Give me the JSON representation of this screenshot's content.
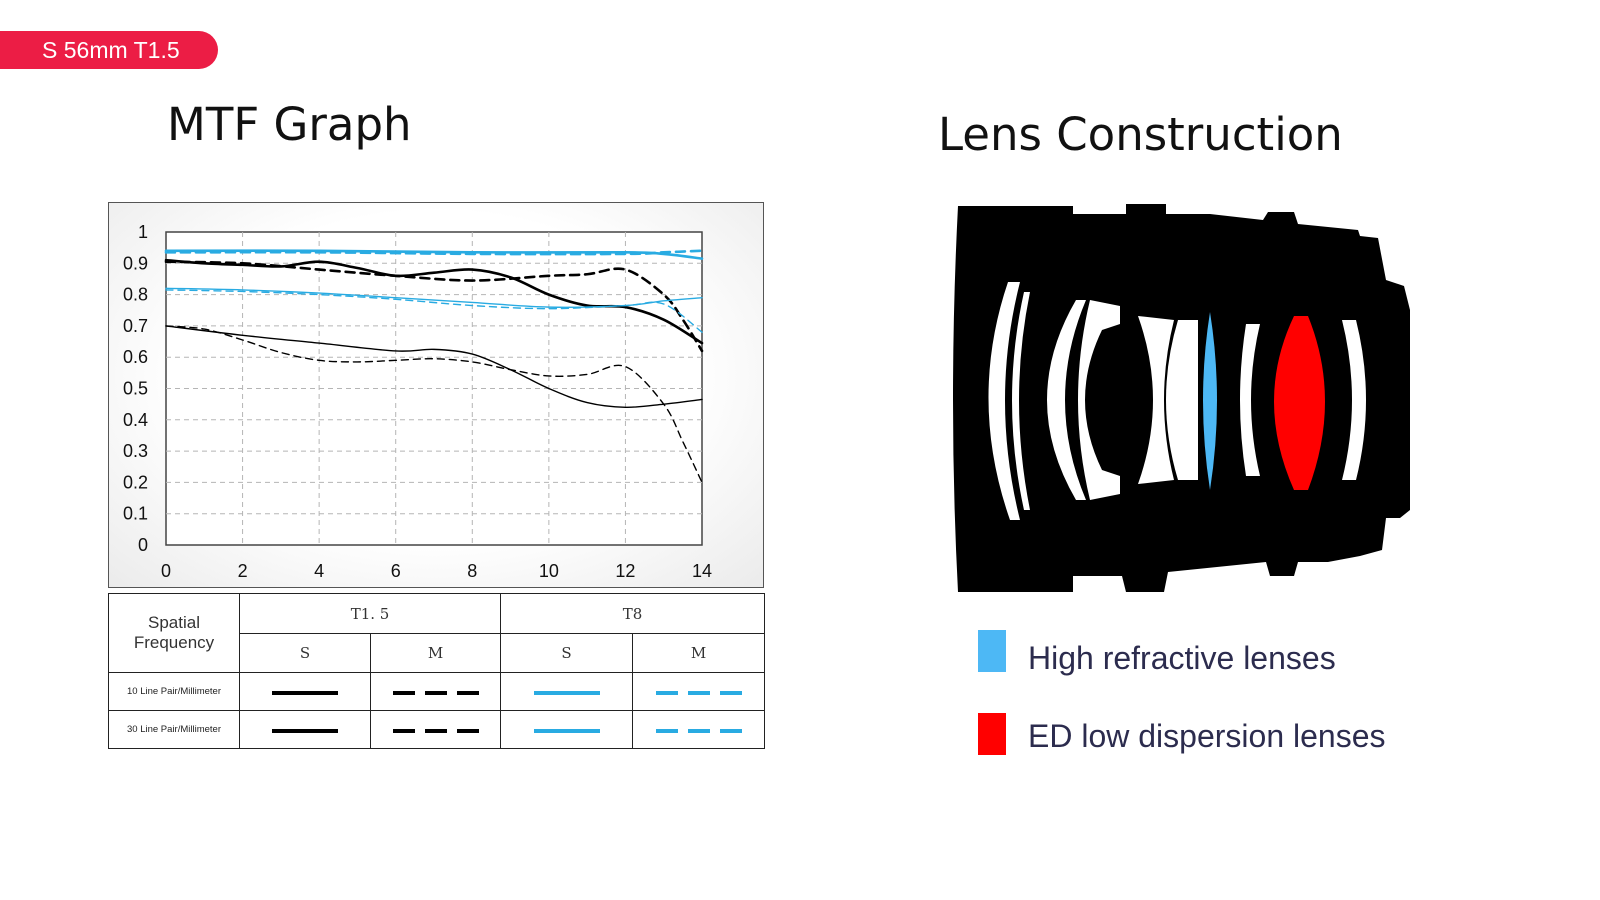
{
  "badge": "S 56mm T1.5",
  "mtf_title": "MTF Graph",
  "lens_title": "Lens Construction",
  "colors": {
    "badge": "#ec1d45",
    "t15_line": "#000000",
    "t8_line": "#29abe2",
    "high_refractive": "#4db8f5",
    "ed_low_dispersion": "#ff0000",
    "barrel": "#000000"
  },
  "chart_data": {
    "type": "line",
    "xlim": [
      0,
      14
    ],
    "ylim": [
      0,
      1
    ],
    "x_ticks": [
      "0",
      "2",
      "4",
      "6",
      "8",
      "10",
      "12",
      "14"
    ],
    "y_ticks": [
      "0",
      "0.1",
      "0.2",
      "0.3",
      "0.4",
      "0.5",
      "0.6",
      "0.7",
      "0.8",
      "0.9",
      "1"
    ],
    "grid": true,
    "series": [
      {
        "aperture": "T1.5",
        "orientation": "S",
        "frequency": "10 Line Pair/Millimeter",
        "color": "#000000",
        "style": "solid",
        "weight": "bold",
        "x": [
          0,
          1,
          2,
          3,
          4,
          5,
          6,
          7,
          8,
          9,
          10,
          11,
          12,
          13,
          14
        ],
        "y": [
          0.91,
          0.9,
          0.895,
          0.89,
          0.905,
          0.885,
          0.86,
          0.87,
          0.88,
          0.855,
          0.8,
          0.765,
          0.76,
          0.72,
          0.645
        ]
      },
      {
        "aperture": "T1.5",
        "orientation": "M",
        "frequency": "10 Line Pair/Millimeter",
        "color": "#000000",
        "style": "dash",
        "weight": "bold",
        "x": [
          0,
          2,
          4,
          6,
          8,
          10,
          11,
          12,
          13,
          13.5,
          14
        ],
        "y": [
          0.905,
          0.9,
          0.88,
          0.86,
          0.845,
          0.86,
          0.865,
          0.88,
          0.8,
          0.72,
          0.62
        ]
      },
      {
        "aperture": "T1.5",
        "orientation": "S",
        "frequency": "30 Line Pair/Millimeter",
        "color": "#000000",
        "style": "solid",
        "weight": "thin",
        "x": [
          0,
          2,
          4,
          6,
          7,
          8,
          9,
          10,
          11,
          12,
          13,
          14
        ],
        "y": [
          0.7,
          0.67,
          0.645,
          0.62,
          0.625,
          0.61,
          0.56,
          0.5,
          0.455,
          0.44,
          0.45,
          0.465
        ]
      },
      {
        "aperture": "T1.5",
        "orientation": "M",
        "frequency": "30 Line Pair/Millimeter",
        "color": "#000000",
        "style": "dash",
        "weight": "thin",
        "x": [
          0,
          1,
          2,
          3,
          4,
          5,
          6,
          7,
          8,
          9,
          10,
          11,
          12,
          13,
          13.5,
          14
        ],
        "y": [
          0.7,
          0.69,
          0.655,
          0.615,
          0.59,
          0.585,
          0.59,
          0.595,
          0.585,
          0.56,
          0.54,
          0.545,
          0.57,
          0.45,
          0.33,
          0.2
        ]
      },
      {
        "aperture": "T8",
        "orientation": "S",
        "frequency": "10 Line Pair/Millimeter",
        "color": "#29abe2",
        "style": "solid",
        "weight": "bold",
        "x": [
          0,
          4,
          8,
          12,
          13,
          14
        ],
        "y": [
          0.94,
          0.94,
          0.935,
          0.935,
          0.93,
          0.915
        ]
      },
      {
        "aperture": "T8",
        "orientation": "M",
        "frequency": "10 Line Pair/Millimeter",
        "color": "#29abe2",
        "style": "dash",
        "weight": "bold",
        "x": [
          0,
          4,
          8,
          12,
          13,
          14
        ],
        "y": [
          0.935,
          0.935,
          0.93,
          0.93,
          0.935,
          0.94
        ]
      },
      {
        "aperture": "T8",
        "orientation": "S",
        "frequency": "30 Line Pair/Millimeter",
        "color": "#29abe2",
        "style": "solid",
        "weight": "thin",
        "x": [
          0,
          2,
          4,
          6,
          8,
          10,
          12,
          13,
          14
        ],
        "y": [
          0.82,
          0.815,
          0.805,
          0.79,
          0.775,
          0.76,
          0.765,
          0.78,
          0.79
        ]
      },
      {
        "aperture": "T8",
        "orientation": "M",
        "frequency": "30 Line Pair/Millimeter",
        "color": "#29abe2",
        "style": "dash",
        "weight": "thin",
        "x": [
          0,
          2,
          4,
          6,
          8,
          10,
          12,
          13,
          14
        ],
        "y": [
          0.815,
          0.81,
          0.8,
          0.785,
          0.765,
          0.755,
          0.765,
          0.77,
          0.68
        ]
      }
    ]
  },
  "legend_table": {
    "header": "Spatial Frequency",
    "spatial_frequency": [
      "Spatial",
      "Frequency"
    ],
    "apertures": [
      "T1. 5",
      "T8"
    ],
    "orientations": [
      "S",
      "M",
      "S",
      "M"
    ],
    "rows": [
      "10 Line Pair/Millimeter",
      "30 Line Pair/Millimeter"
    ]
  },
  "lens_legend": [
    {
      "label": "High refractive lenses",
      "color": "#4db8f5"
    },
    {
      "label": "ED low dispersion lenses",
      "color": "#ff0000"
    }
  ]
}
